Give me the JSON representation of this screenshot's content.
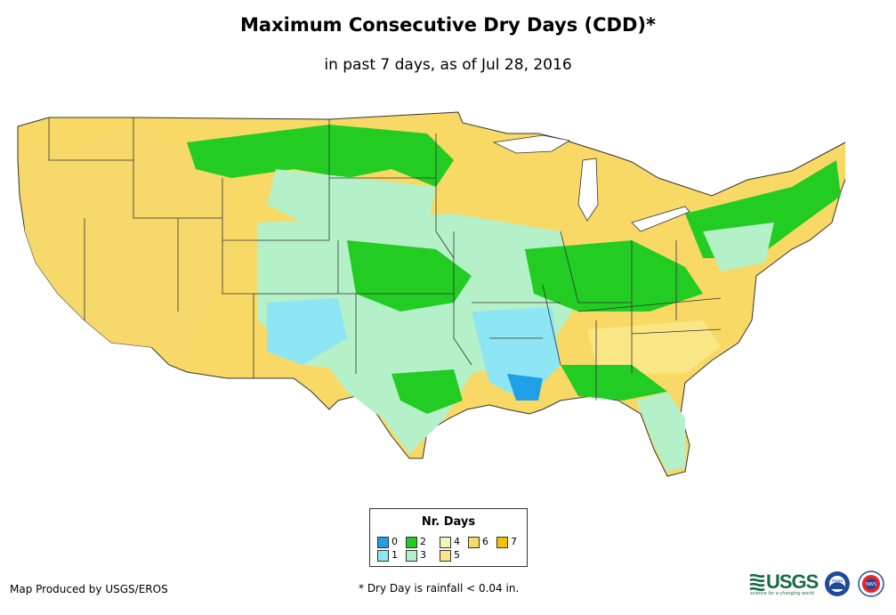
{
  "title": "Maximum Consecutive Dry Days (CDD)*",
  "subtitle": "in past 7 days, as of Jul 28, 2016",
  "legend": {
    "title": "Nr. Days",
    "items": [
      {
        "label": "0",
        "color": "#1e9fe6"
      },
      {
        "label": "1",
        "color": "#8ee6f5"
      },
      {
        "label": "2",
        "color": "#22cc22"
      },
      {
        "label": "3",
        "color": "#b4f0c8"
      },
      {
        "label": "4",
        "color": "#f6f4be"
      },
      {
        "label": "5",
        "color": "#f8e784"
      },
      {
        "label": "6",
        "color": "#f8d966"
      },
      {
        "label": "7",
        "color": "#f5c000"
      }
    ]
  },
  "credit": "Map Produced by USGS/EROS",
  "footnote": "* Dry Day is rainfall < 0.04 in.",
  "logos": {
    "usgs": "USGS",
    "usgs_tagline": "science for a changing world",
    "noaa": "noaa",
    "nws": "NWS"
  },
  "icons": [
    "usgs-logo-icon",
    "noaa-seal-icon",
    "nws-seal-icon"
  ]
}
